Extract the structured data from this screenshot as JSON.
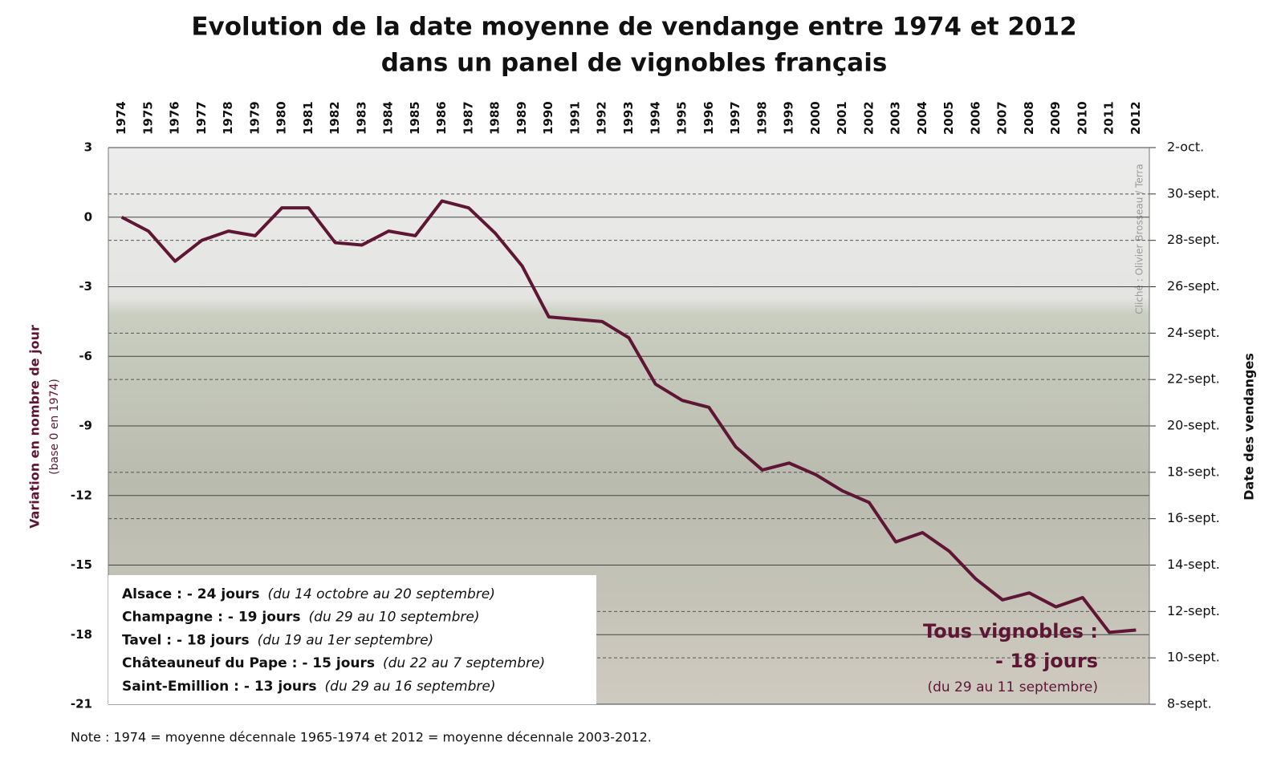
{
  "chart_data": {
    "type": "line",
    "title": [
      "Evolution de la date moyenne de vendange entre 1974 et 2012",
      "dans un panel de vignobles français"
    ],
    "y_label": "Variation en nombre de jour",
    "y_sublabel": "(base 0 en 1974)",
    "y2_label": "Date des vendanges",
    "categories": [
      "1974",
      "1975",
      "1976",
      "1977",
      "1978",
      "1979",
      "1980",
      "1981",
      "1982",
      "1983",
      "1984",
      "1985",
      "1986",
      "1987",
      "1988",
      "1989",
      "1990",
      "1991",
      "1992",
      "1993",
      "1994",
      "1995",
      "1996",
      "1997",
      "1998",
      "1999",
      "2000",
      "2001",
      "2002",
      "2003",
      "2004",
      "2005",
      "2006",
      "2007",
      "2008",
      "2009",
      "2010",
      "2011",
      "2012"
    ],
    "series": [
      {
        "color": "#5e1634",
        "values": [
          0,
          -0.6,
          -1.9,
          -1.0,
          -0.6,
          -0.8,
          0.4,
          0.4,
          -1.1,
          -1.2,
          -0.6,
          -0.8,
          0.7,
          0.4,
          -0.7,
          -2.1,
          -4.3,
          -4.4,
          -4.5,
          -5.2,
          -7.2,
          -7.9,
          -8.2,
          -9.9,
          -10.9,
          -10.6,
          -11.1,
          -11.8,
          -12.3,
          -14.0,
          -13.6,
          -14.4,
          -15.6,
          -16.5,
          -16.2,
          -16.8,
          -16.4,
          -17.9,
          -17.8
        ]
      }
    ],
    "ylim": [
      -21,
      3
    ],
    "yticks": [
      3,
      0,
      -3,
      -6,
      -9,
      -12,
      -15,
      -18,
      -21
    ],
    "y2lim": [
      8,
      32
    ],
    "y2ticks": [
      {
        "value": 32,
        "label": "2-oct."
      },
      {
        "value": 30,
        "label": "30-sept."
      },
      {
        "value": 28,
        "label": "28-sept."
      },
      {
        "value": 26,
        "label": "26-sept."
      },
      {
        "value": 24,
        "label": "24-sept."
      },
      {
        "value": 22,
        "label": "22-sept."
      },
      {
        "value": 20,
        "label": "20-sept."
      },
      {
        "value": 18,
        "label": "18-sept."
      },
      {
        "value": 16,
        "label": "16-sept."
      },
      {
        "value": 14,
        "label": "14-sept."
      },
      {
        "value": 12,
        "label": "12-sept."
      },
      {
        "value": 10,
        "label": "10-sept."
      },
      {
        "value": 8,
        "label": "8-sept."
      }
    ],
    "grid": true,
    "legend_box": [
      {
        "name": "Alsace : - 24 jours",
        "detail": "(du 14 octobre au 20 septembre)"
      },
      {
        "name": "Champagne : - 19 jours",
        "detail": "(du 29 au 10 septembre)"
      },
      {
        "name": "Tavel : - 18 jours",
        "detail": "(du 19 au 1er septembre)"
      },
      {
        "name": "Châteauneuf du Pape : - 15 jours",
        "detail": "(du 22 au 7 septembre)"
      },
      {
        "name": "Saint-Emillion : - 13 jours",
        "detail": "(du 29 au 16 septembre)"
      }
    ],
    "summary": [
      "Tous vignobles :",
      "- 18 jours",
      "(du 29 au 11 septembre)"
    ],
    "credit": "Cliché : Olivier Brosseau / Terra",
    "note": "Note : 1974 = moyenne  décennale 1965-1974  et 2012 = moyenne  décennale 2003-2012."
  }
}
